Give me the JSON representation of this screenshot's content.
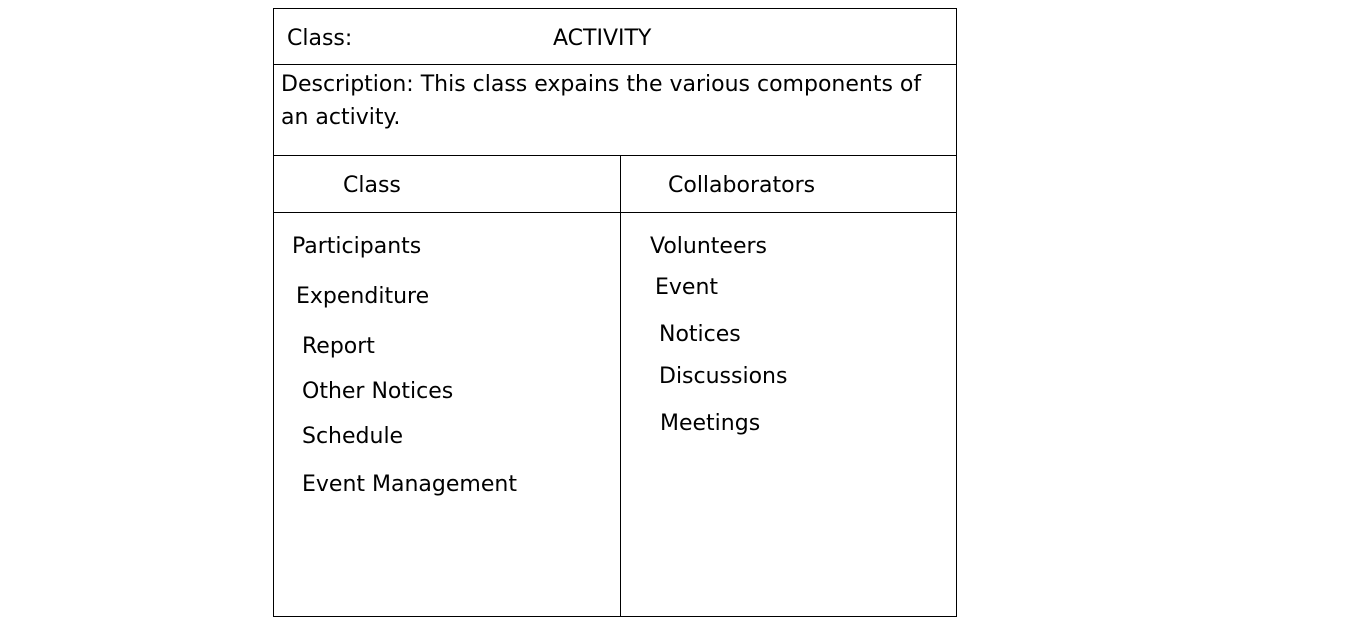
{
  "card": {
    "class_label": "Class:",
    "class_name": "ACTIVITY",
    "description": "Description: This class expains the various components of an activity."
  },
  "table": {
    "headers": {
      "class": "Class",
      "collaborators": "Collaborators"
    },
    "classes": [
      "Participants",
      "Expenditure",
      "Report",
      "Other Notices",
      "Schedule",
      "Event Management"
    ],
    "collaborators": [
      "Volunteers",
      "Event",
      "Notices",
      "Discussions",
      "Meetings"
    ]
  }
}
